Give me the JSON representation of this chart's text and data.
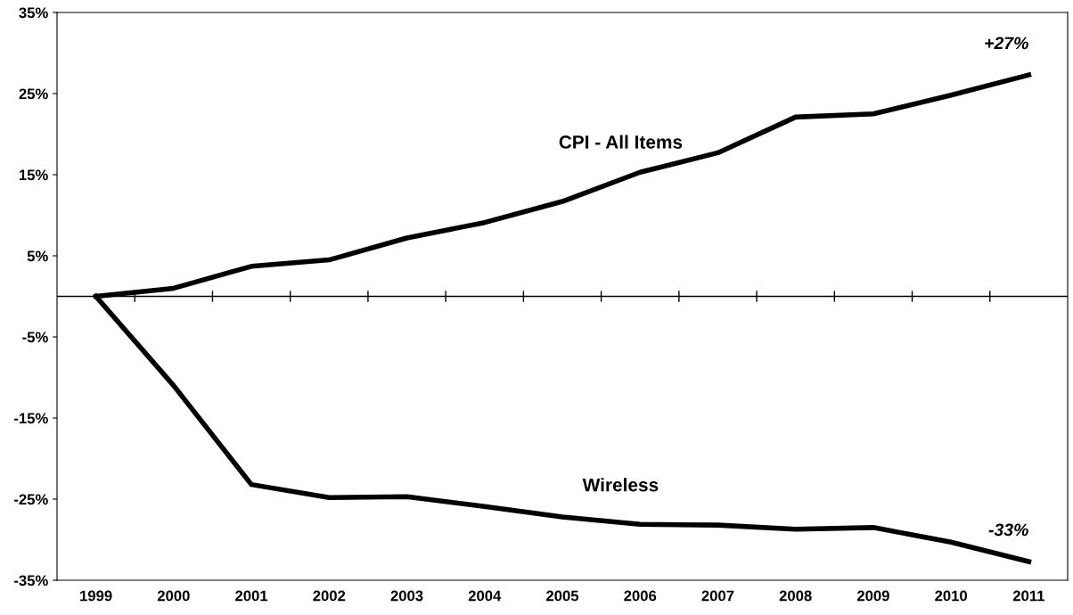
{
  "chart_data": {
    "type": "line",
    "categories": [
      "1999",
      "2000",
      "2001",
      "2002",
      "2003",
      "2004",
      "2005",
      "2006",
      "2007",
      "2008",
      "2009",
      "2010",
      "2011"
    ],
    "series": [
      {
        "name": "CPI - All Items",
        "color": "#000000",
        "values": [
          0,
          1.0,
          3.7,
          4.5,
          7.2,
          9.1,
          11.7,
          15.3,
          17.7,
          22.1,
          22.5,
          24.8,
          27.3
        ],
        "value_labels": [
          null,
          null,
          null,
          null,
          null,
          null,
          null,
          null,
          null,
          null,
          null,
          null,
          "+27%"
        ]
      },
      {
        "name": "Wireless",
        "color": "#000000",
        "values": [
          0,
          -11.0,
          -23.2,
          -24.8,
          -24.7,
          -25.9,
          -27.2,
          -28.1,
          -28.2,
          -28.7,
          -28.5,
          -30.3,
          -32.7
        ],
        "value_labels": [
          null,
          null,
          null,
          null,
          null,
          null,
          null,
          null,
          null,
          null,
          null,
          null,
          "-33%"
        ]
      }
    ],
    "ylim": [
      -35,
      35
    ],
    "yticks": [
      {
        "value": 35,
        "label": "35%"
      },
      {
        "value": 25,
        "label": "25%"
      },
      {
        "value": 15,
        "label": "15%"
      },
      {
        "value": 5,
        "label": "5%"
      },
      {
        "value": -5,
        "label": "-5%"
      },
      {
        "value": -15,
        "label": "-15%"
      },
      {
        "value": -25,
        "label": "-25%"
      },
      {
        "value": -35,
        "label": "-35%"
      }
    ],
    "ref_lines": [
      {
        "axis": "y",
        "value": 0,
        "color": "#000000"
      }
    ],
    "grid": false,
    "legend": false,
    "marker": "none",
    "line_style": "solid"
  }
}
